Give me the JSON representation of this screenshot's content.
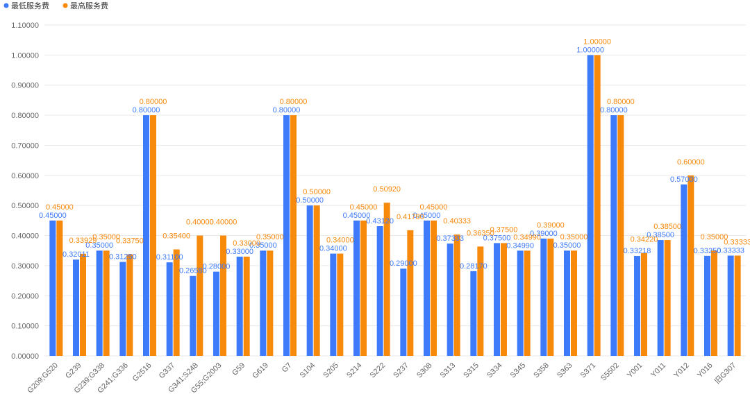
{
  "chart_data": {
    "type": "bar",
    "title": "",
    "xlabel": "",
    "ylabel": "",
    "ylim": [
      0,
      1.1
    ],
    "y_ticks": [
      "0.00000",
      "0.10000",
      "0.20000",
      "0.30000",
      "0.40000",
      "0.50000",
      "0.60000",
      "0.70000",
      "0.80000",
      "0.90000",
      "1.00000",
      "1.10000"
    ],
    "legend_position": "top-left",
    "grid": true,
    "categories": [
      "G209;G520",
      "G239",
      "G239;G338",
      "G241;G336",
      "G2516",
      "G337",
      "G341;S248",
      "G55;G2003",
      "G59",
      "G619",
      "G7",
      "S104",
      "S205",
      "S214",
      "S222",
      "S237",
      "S308",
      "S313",
      "S315",
      "S334",
      "S345",
      "S358",
      "S363",
      "S371",
      "S5502",
      "Y001",
      "Y011",
      "Y012",
      "Y016",
      "旧G307"
    ],
    "series": [
      {
        "name": "最低服务费",
        "color": "#3e7bfa",
        "values": [
          0.45,
          0.32011,
          0.35,
          0.3125,
          0.8,
          0.311,
          0.2658,
          0.28,
          0.33,
          0.35,
          0.8,
          0.5,
          0.34,
          0.45,
          0.4312,
          0.29,
          0.45,
          0.37333,
          0.2817,
          0.375,
          0.3499,
          0.39,
          0.35,
          1.0,
          0.8,
          0.33218,
          0.385,
          0.57,
          0.3325,
          0.33333
        ],
        "labels": [
          "0.45000",
          "0.32011",
          "0.35000",
          "0.31250",
          "0.80000",
          "0.31100",
          "0.26580",
          "0.28000",
          "0.33000",
          "0.35000",
          "0.80000",
          "0.50000",
          "0.34000",
          "0.45000",
          "0.43120",
          "0.29000",
          "0.45000",
          "0.37333",
          "0.28170",
          "0.37500",
          "0.34990",
          "0.39000",
          "0.35000",
          "1.00000",
          "0.80000",
          "0.33218",
          "0.38500",
          "0.57000",
          "0.33250",
          "0.33333"
        ]
      },
      {
        "name": "最高服务费",
        "color": "#f7890b",
        "values": [
          0.45,
          0.33929,
          0.35,
          0.3375,
          0.8,
          0.354,
          0.4,
          0.4,
          0.33,
          0.35,
          0.8,
          0.5,
          0.34,
          0.45,
          0.5092,
          0.4178,
          0.45,
          0.40333,
          0.3635,
          0.375,
          0.3499,
          0.39,
          0.35,
          1.0,
          0.8,
          0.3422,
          0.385,
          0.6,
          0.35,
          0.33333
        ],
        "labels": [
          "0.45000",
          "0.33929",
          "0.35000",
          "0.33750",
          "0.80000",
          "0.35400",
          "0.40000",
          "0.40000",
          "0.33000",
          "0.35000",
          "0.80000",
          "0.50000",
          "0.34000",
          "0.45000",
          "0.50920",
          "0.41780",
          "0.45000",
          "0.40333",
          "0.36350",
          "0.37500",
          "0.34990",
          "0.39000",
          "0.35000",
          "1.00000",
          "0.80000",
          "0.34220",
          "0.38500",
          "0.60000",
          "0.35000",
          "0.33333"
        ]
      }
    ]
  }
}
